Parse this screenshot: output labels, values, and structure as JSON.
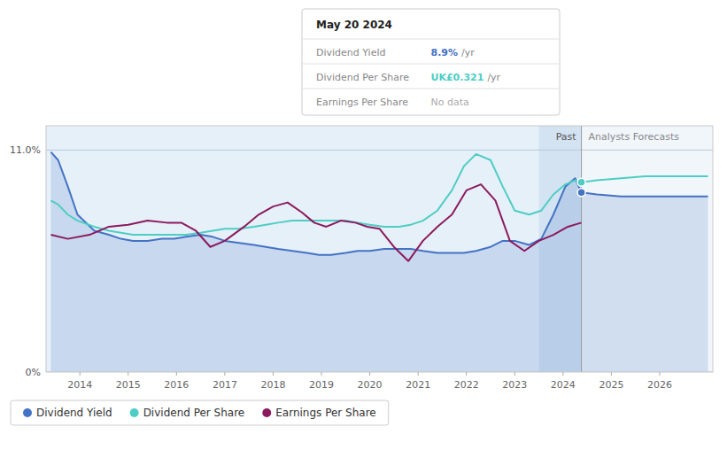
{
  "chart_data": {
    "type": "line",
    "xlim": [
      2013.3,
      2027.1
    ],
    "ylim": [
      0.0,
      12.2
    ],
    "xticks": [
      2014,
      2015,
      2016,
      2017,
      2018,
      2019,
      2020,
      2021,
      2022,
      2023,
      2024,
      2025,
      2026
    ],
    "yticks": [
      {
        "value": 0.0,
        "label": "0%"
      },
      {
        "value": 11.0,
        "label": "11.0%"
      }
    ],
    "grid": true,
    "legend": "bottom",
    "past_end": 2024.38,
    "highlight_start": 2023.5,
    "annotations": [
      "Past",
      "Analysts Forecasts",
      "May 20 2024",
      "Dividend Yield",
      "8.9%",
      "/yr",
      "Dividend Per Share",
      "UK£0.321",
      "/yr",
      "Earnings Per Share",
      "No data"
    ],
    "series": [
      {
        "name": "Dividend Yield",
        "color": "#4472c4",
        "x": [
          2013.4,
          2013.55,
          2013.75,
          2013.95,
          2014.3,
          2014.6,
          2014.85,
          2015.1,
          2015.4,
          2015.7,
          2015.95,
          2016.2,
          2016.5,
          2016.75,
          2017.0,
          2017.3,
          2017.6,
          2017.85,
          2018.1,
          2018.4,
          2018.7,
          2018.95,
          2019.2,
          2019.5,
          2019.75,
          2020.0,
          2020.3,
          2020.6,
          2020.85,
          2021.1,
          2021.4,
          2021.7,
          2021.95,
          2022.2,
          2022.5,
          2022.75,
          2023.0,
          2023.3,
          2023.55,
          2023.8,
          2024.05,
          2024.25,
          2024.38,
          2024.38,
          2024.7,
          2025.2,
          2025.7,
          2026.2,
          2026.7,
          2027.0
        ],
        "values": [
          10.9,
          10.5,
          9.2,
          7.8,
          7.0,
          6.8,
          6.6,
          6.5,
          6.5,
          6.6,
          6.6,
          6.7,
          6.8,
          6.7,
          6.5,
          6.4,
          6.3,
          6.2,
          6.1,
          6.0,
          5.9,
          5.8,
          5.8,
          5.9,
          6.0,
          6.0,
          6.1,
          6.1,
          6.1,
          6.0,
          5.9,
          5.9,
          5.9,
          6.0,
          6.2,
          6.5,
          6.5,
          6.3,
          6.6,
          7.8,
          9.2,
          9.6,
          8.9,
          8.9,
          8.8,
          8.7,
          8.7,
          8.7,
          8.7,
          8.7
        ]
      },
      {
        "name": "Dividend Per Share",
        "color": "#4ecdc4",
        "x": [
          2013.4,
          2013.55,
          2013.75,
          2013.95,
          2014.3,
          2014.6,
          2014.85,
          2015.1,
          2015.4,
          2015.7,
          2015.95,
          2016.2,
          2016.5,
          2016.75,
          2017.0,
          2017.3,
          2017.6,
          2017.85,
          2018.1,
          2018.4,
          2018.7,
          2018.95,
          2019.2,
          2019.5,
          2019.75,
          2020.0,
          2020.3,
          2020.6,
          2020.85,
          2021.1,
          2021.4,
          2021.7,
          2021.95,
          2022.2,
          2022.5,
          2022.75,
          2023.0,
          2023.3,
          2023.55,
          2023.8,
          2024.05,
          2024.25,
          2024.38,
          2024.38,
          2024.7,
          2025.2,
          2025.7,
          2026.2,
          2026.7,
          2027.0
        ],
        "values": [
          8.5,
          8.3,
          7.8,
          7.5,
          7.2,
          7.0,
          6.9,
          6.8,
          6.8,
          6.8,
          6.8,
          6.8,
          6.9,
          7.0,
          7.1,
          7.1,
          7.2,
          7.3,
          7.4,
          7.5,
          7.5,
          7.5,
          7.5,
          7.5,
          7.4,
          7.3,
          7.2,
          7.2,
          7.3,
          7.5,
          8.0,
          9.0,
          10.2,
          10.8,
          10.5,
          9.2,
          8.0,
          7.8,
          8.0,
          8.8,
          9.3,
          9.5,
          9.4,
          9.4,
          9.5,
          9.6,
          9.7,
          9.7,
          9.7,
          9.7
        ]
      },
      {
        "name": "Earnings Per Share",
        "color": "#8b1a5e",
        "x": [
          2013.4,
          2013.75,
          2014.2,
          2014.6,
          2015.0,
          2015.4,
          2015.8,
          2016.1,
          2016.4,
          2016.7,
          2017.0,
          2017.4,
          2017.7,
          2018.0,
          2018.3,
          2018.6,
          2018.85,
          2019.1,
          2019.4,
          2019.7,
          2019.95,
          2020.2,
          2020.5,
          2020.8,
          2021.1,
          2021.4,
          2021.7,
          2022.0,
          2022.3,
          2022.6,
          2022.9,
          2023.2,
          2023.5,
          2023.8,
          2024.1,
          2024.38
        ],
        "values": [
          6.8,
          6.6,
          6.8,
          7.2,
          7.3,
          7.5,
          7.4,
          7.4,
          7.0,
          6.2,
          6.5,
          7.2,
          7.8,
          8.2,
          8.4,
          7.9,
          7.4,
          7.2,
          7.5,
          7.4,
          7.2,
          7.1,
          6.2,
          5.5,
          6.5,
          7.2,
          7.8,
          9.0,
          9.3,
          8.5,
          6.5,
          6.0,
          6.5,
          6.8,
          7.2,
          7.4
        ]
      }
    ]
  }
}
